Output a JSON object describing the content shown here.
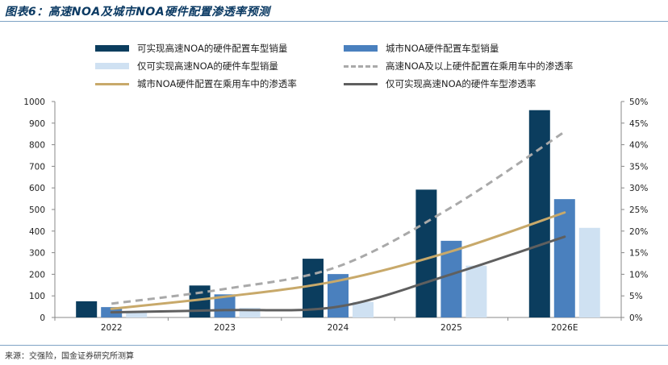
{
  "header": {
    "title": "图表6：高速NOA及城市NOA硬件配置渗透率预测"
  },
  "footer": {
    "source": "来源：交强险，国金证券研究所测算"
  },
  "colors": {
    "bar_high_speed_capable": "#0b3d5e",
    "bar_city": "#4a80be",
    "bar_high_speed_only": "#cfe1f2",
    "line_high_speed_rate": "#a9a9a9",
    "line_city_rate": "#c8a96a",
    "line_high_speed_only_rate": "#5f5f5f"
  },
  "chart_data": {
    "type": "bar",
    "title": "高速NOA及城市NOA硬件配置渗透率预测",
    "categories": [
      "2022",
      "2023",
      "2024",
      "2025",
      "2026E"
    ],
    "y_left": {
      "min": 0,
      "max": 1000,
      "step": 100,
      "tick_labels": [
        "0",
        "100",
        "200",
        "300",
        "400",
        "500",
        "600",
        "700",
        "800",
        "900",
        "1000"
      ]
    },
    "y_right": {
      "min": 0,
      "max": 50,
      "step": 5,
      "tick_labels": [
        "0%",
        "5%",
        "10%",
        "15%",
        "20%",
        "25%",
        "30%",
        "35%",
        "40%",
        "45%",
        "50%"
      ]
    },
    "series": [
      {
        "name": "可实现高速NOA的硬件配置车型销量",
        "kind": "bar",
        "axis": "left",
        "color": "#0b3d5e",
        "values": [
          75,
          148,
          272,
          592,
          960
        ]
      },
      {
        "name": "城市NOA硬件配置车型销量",
        "kind": "bar",
        "axis": "left",
        "color": "#4a80be",
        "values": [
          48,
          107,
          201,
          355,
          548
        ]
      },
      {
        "name": "仅可实现高速NOA的硬件车型销量",
        "kind": "bar",
        "axis": "left",
        "color": "#cfe1f2",
        "values": [
          30,
          45,
          72,
          240,
          415
        ]
      },
      {
        "name": "高速NOA及以上硬件配置在乘用车中的渗透率",
        "kind": "line",
        "axis": "right",
        "style": "dashed",
        "color": "#a9a9a9",
        "values": [
          3.2,
          6.6,
          11.8,
          25.5,
          43.0
        ]
      },
      {
        "name": "城市NOA硬件配置在乘用车中的渗透率",
        "kind": "line",
        "axis": "right",
        "style": "solid",
        "color": "#c8a96a",
        "values": [
          2.0,
          4.8,
          8.5,
          15.3,
          24.3
        ]
      },
      {
        "name": "仅可实现高速NOA的硬件车型渗透率",
        "kind": "line",
        "axis": "right",
        "style": "solid",
        "color": "#5f5f5f",
        "values": [
          1.2,
          1.7,
          2.5,
          10.0,
          18.7
        ]
      }
    ],
    "legend_position": "top",
    "grid": false
  }
}
